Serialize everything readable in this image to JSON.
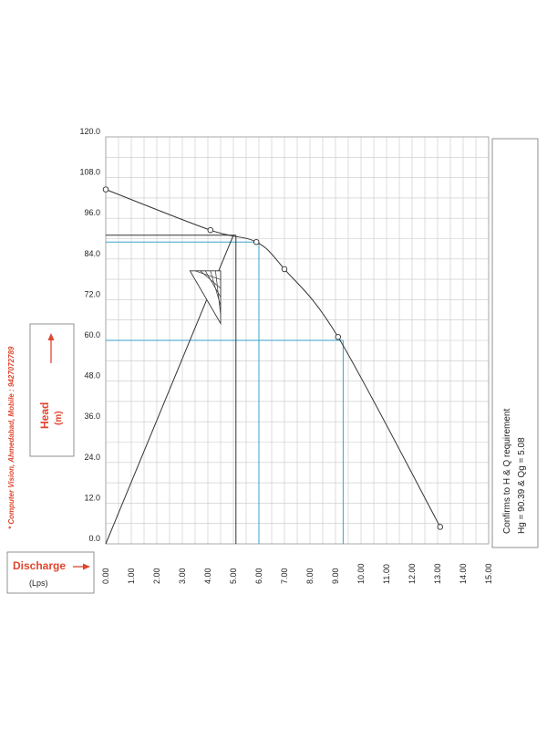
{
  "chart_data": {
    "type": "line",
    "xlabel": "Discharge",
    "xunit": "(Lps)",
    "ylabel": "Head",
    "yunit": "(m)",
    "xlim": [
      0,
      15
    ],
    "ylim": [
      0,
      120
    ],
    "x_ticks": [
      "0.00",
      "1.00",
      "2.00",
      "3.00",
      "4.00",
      "5.00",
      "6.00",
      "7.00",
      "8.00",
      "9.00",
      "10.00",
      "11.00",
      "12.00",
      "13.00",
      "14.00",
      "15.00"
    ],
    "y_ticks": [
      "0.0",
      "12.0",
      "24.0",
      "36.0",
      "48.0",
      "60.0",
      "72.0",
      "84.0",
      "96.0",
      "108.0",
      "120.0"
    ],
    "grid": true,
    "series": [
      {
        "points": [
          [
            0.0,
            104.5
          ],
          [
            4.1,
            92.5
          ],
          [
            5.9,
            89.0
          ],
          [
            7.0,
            81.0
          ],
          [
            9.1,
            61.0
          ],
          [
            13.1,
            5.0
          ]
        ],
        "color": "#333333"
      },
      {
        "points": [
          [
            0.0,
            0.0
          ],
          [
            5.0,
            91.0
          ]
        ],
        "color": "#333333"
      }
    ],
    "reference_lines": [
      {
        "x": 6.0,
        "y": 89.0,
        "color": "#3aa3c8"
      },
      {
        "x": 9.3,
        "y": 60.0,
        "color": "#3aa3c8"
      },
      {
        "x": 5.1,
        "y": 91.0,
        "color": "#333333"
      }
    ],
    "annotation": {
      "line1": "Confirms to H & Q requirement",
      "line2": "Hg = 90.39 & Qg = 5.08"
    },
    "watermark": "* Computer Vision, Ahmedabad, Mobile : 9427072789"
  }
}
